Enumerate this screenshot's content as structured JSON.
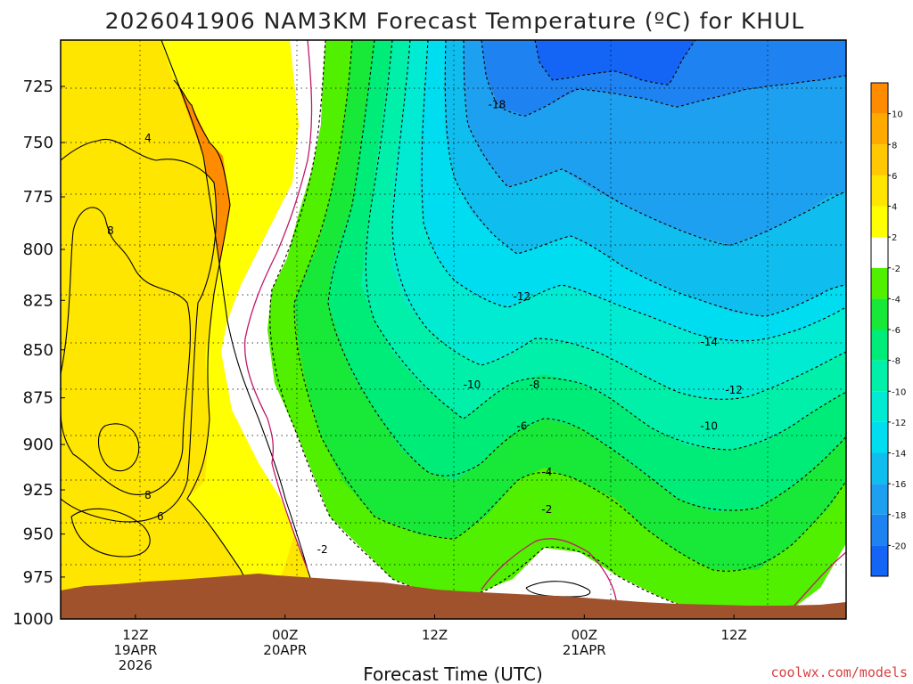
{
  "chart_data": {
    "type": "heatmap",
    "title": "2026041906 NAM3KM Forecast Temperature (ºC) for KHUL",
    "xlabel": "Forecast Time (UTC)",
    "ylabel": "",
    "credit": "coolwx.com/models",
    "y_axis": {
      "scale": "pressure (hPa), inverted",
      "range": [
        1000,
        705
      ],
      "ticks": [
        725,
        750,
        775,
        800,
        825,
        850,
        875,
        900,
        925,
        950,
        975,
        1000
      ]
    },
    "x_axis": {
      "range": [
        "2026-04-19 06Z",
        "2026-04-21 21Z"
      ],
      "ticks": [
        {
          "time": "2026-04-19 12Z",
          "label": [
            "12Z",
            "19APR",
            "2026"
          ]
        },
        {
          "time": "2026-04-20 00Z",
          "label": [
            "00Z",
            "20APR"
          ]
        },
        {
          "time": "2026-04-20 12Z",
          "label": [
            "12Z"
          ]
        },
        {
          "time": "2026-04-21 00Z",
          "label": [
            "00Z",
            "21APR"
          ]
        },
        {
          "time": "2026-04-21 12Z",
          "label": [
            "12Z"
          ]
        }
      ]
    },
    "grid": true,
    "colorbar": {
      "placement": "right",
      "levels": [
        -22,
        -20,
        -18,
        -16,
        -14,
        -12,
        -10,
        -8,
        -6,
        -4,
        -2,
        2,
        4,
        6,
        8,
        10,
        12
      ],
      "tick_labels": [
        "-20",
        "-18",
        "-16",
        "-14",
        "-12",
        "-10",
        "-8",
        "-6",
        "-4",
        "-2",
        "2",
        "4",
        "6",
        "8",
        "10"
      ],
      "colors": [
        "#1464f6",
        "#1e82f0",
        "#1ea0f0",
        "#0fbeee",
        "#00dcf0",
        "#00ebd2",
        "#00f0aa",
        "#00ec78",
        "#18e838",
        "#50f000",
        "#ffffff",
        "#ffff00",
        "#ffe600",
        "#ffc800",
        "#ffaa00",
        "#ff8c00"
      ]
    },
    "ground_color": "#a0522d",
    "contour_labels": [
      {
        "time": "2026-04-19 13Z",
        "pressure": 748,
        "value": "4"
      },
      {
        "time": "2026-04-19 10Z",
        "pressure": 791,
        "value": "8"
      },
      {
        "time": "2026-04-19 13Z",
        "pressure": 928,
        "value": "8"
      },
      {
        "time": "2026-04-19 14Z",
        "pressure": 940,
        "value": "6"
      },
      {
        "time": "2026-04-20 03Z",
        "pressure": 959,
        "value": "-2"
      },
      {
        "time": "2026-04-20 17Z",
        "pressure": 733,
        "value": "-18"
      },
      {
        "time": "2026-04-20 19Z",
        "pressure": 823,
        "value": "-12"
      },
      {
        "time": "2026-04-20 15Z",
        "pressure": 868,
        "value": "-10"
      },
      {
        "time": "2026-04-20 20Z",
        "pressure": 868,
        "value": "-8"
      },
      {
        "time": "2026-04-20 19Z",
        "pressure": 890,
        "value": "-6"
      },
      {
        "time": "2026-04-20 21Z",
        "pressure": 915,
        "value": "-4"
      },
      {
        "time": "2026-04-20 21Z",
        "pressure": 936,
        "value": "-2"
      },
      {
        "time": "2026-04-21 10Z",
        "pressure": 846,
        "value": "-14"
      },
      {
        "time": "2026-04-21 12Z",
        "pressure": 871,
        "value": "-12"
      },
      {
        "time": "2026-04-21 10Z",
        "pressure": 890,
        "value": "-10"
      }
    ]
  }
}
